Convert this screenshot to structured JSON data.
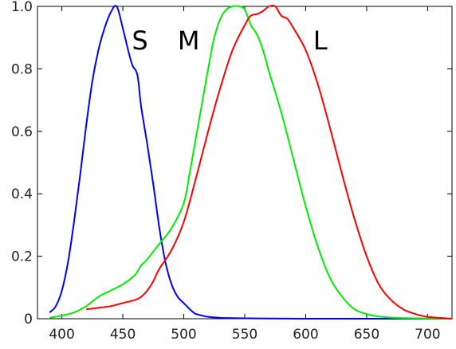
{
  "chart_data": {
    "type": "line",
    "title": "",
    "xlabel": "",
    "ylabel": "",
    "xlim": [
      380,
      720
    ],
    "ylim": [
      0,
      1.0
    ],
    "grid": false,
    "x_ticks": [
      400,
      450,
      500,
      550,
      600,
      650,
      700
    ],
    "y_ticks": [
      0,
      0.2,
      0.4,
      0.6,
      0.8,
      1.0
    ],
    "x_tick_labels": [
      "400",
      "450",
      "500",
      "550",
      "600",
      "650",
      "700"
    ],
    "y_tick_labels": [
      "0",
      "0.2",
      "0.4",
      "0.6",
      "0.8",
      "1.0"
    ],
    "annotations": [
      {
        "text": "S",
        "x": 464,
        "y": 0.89,
        "color": "#000000"
      },
      {
        "text": "M",
        "x": 504,
        "y": 0.89,
        "color": "#000000"
      },
      {
        "text": "L",
        "x": 612,
        "y": 0.89,
        "color": "#000000"
      }
    ],
    "series": [
      {
        "color": "#0000ff",
        "x": [
          390,
          395,
          400,
          405,
          410,
          415,
          420,
          425,
          430,
          435,
          440,
          445,
          450,
          455,
          458,
          462,
          465,
          470,
          475,
          480,
          485,
          490,
          495,
          500,
          505,
          508,
          510,
          515,
          520,
          530,
          540,
          560,
          600,
          650,
          720
        ],
        "y": [
          0.02,
          0.04,
          0.09,
          0.18,
          0.31,
          0.46,
          0.62,
          0.76,
          0.86,
          0.93,
          0.98,
          1.0,
          0.93,
          0.85,
          0.81,
          0.78,
          0.68,
          0.56,
          0.43,
          0.29,
          0.18,
          0.11,
          0.07,
          0.05,
          0.03,
          0.02,
          0.015,
          0.01,
          0.006,
          0.003,
          0.002,
          0.001,
          0.0,
          0.0,
          0.0
        ]
      },
      {
        "color": "#00ee00",
        "x": [
          390,
          400,
          410,
          420,
          430,
          440,
          450,
          460,
          465,
          470,
          480,
          490,
          500,
          505,
          510,
          515,
          520,
          525,
          530,
          535,
          540,
          545,
          550,
          555,
          560,
          565,
          570,
          580,
          590,
          600,
          610,
          620,
          630,
          640,
          650,
          660,
          680,
          720
        ],
        "y": [
          0.003,
          0.01,
          0.02,
          0.04,
          0.07,
          0.09,
          0.11,
          0.14,
          0.17,
          0.19,
          0.24,
          0.29,
          0.37,
          0.47,
          0.58,
          0.69,
          0.8,
          0.9,
          0.96,
          0.99,
          1.0,
          1.0,
          0.99,
          0.94,
          0.91,
          0.86,
          0.79,
          0.66,
          0.51,
          0.36,
          0.23,
          0.13,
          0.07,
          0.03,
          0.015,
          0.007,
          0.002,
          0.0
        ]
      },
      {
        "color": "#ff0000",
        "x": [
          420,
          430,
          440,
          450,
          460,
          465,
          470,
          475,
          480,
          490,
          500,
          510,
          520,
          530,
          540,
          550,
          555,
          560,
          565,
          570,
          575,
          580,
          585,
          590,
          600,
          610,
          620,
          630,
          640,
          650,
          660,
          670,
          680,
          690,
          700,
          720
        ],
        "y": [
          0.03,
          0.035,
          0.04,
          0.05,
          0.06,
          0.07,
          0.09,
          0.12,
          0.16,
          0.22,
          0.31,
          0.45,
          0.6,
          0.74,
          0.86,
          0.94,
          0.97,
          0.975,
          0.985,
          1.0,
          1.0,
          0.97,
          0.96,
          0.93,
          0.86,
          0.75,
          0.61,
          0.46,
          0.32,
          0.2,
          0.11,
          0.06,
          0.03,
          0.015,
          0.006,
          0.0
        ]
      }
    ]
  }
}
